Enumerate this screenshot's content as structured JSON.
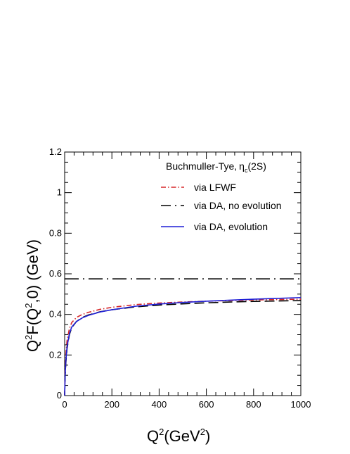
{
  "chart_data": {
    "type": "line",
    "xlabel_base": "Q",
    "xlabel_sup": "2",
    "xlabel_rest": "(GeV",
    "xlabel_sup2": "2",
    "xlabel_end": ")",
    "ylabel_a": "Q",
    "ylabel_sup1": "2",
    "ylabel_b": "F(Q",
    "ylabel_sup2": "2",
    "ylabel_c": ",0) (GeV)",
    "xlim": [
      0,
      1000
    ],
    "ylim": [
      0,
      1.2
    ],
    "x_ticks": [
      "0",
      "200",
      "400",
      "600",
      "800",
      "1000"
    ],
    "y_ticks": [
      "0",
      "0.2",
      "0.4",
      "0.6",
      "0.8",
      "1",
      "1.2"
    ],
    "legend_header_a": "Buchmuller-Tye,",
    "legend_header_eta": "η",
    "legend_header_sub": "c",
    "legend_header_b": "(2S)",
    "grid": false,
    "legend_position": "top-right",
    "series": [
      {
        "name": "via LFWF",
        "color": "#d62728",
        "dash": "dash-dot",
        "x": [
          0,
          2,
          5,
          10,
          20,
          30,
          50,
          75,
          100,
          150,
          200,
          300,
          400,
          500,
          600,
          700,
          800,
          900,
          1000
        ],
        "y": [
          0.0,
          0.12,
          0.2,
          0.27,
          0.33,
          0.36,
          0.385,
          0.4,
          0.41,
          0.425,
          0.435,
          0.448,
          0.456,
          0.461,
          0.465,
          0.468,
          0.471,
          0.473,
          0.475
        ]
      },
      {
        "name": "via DA, no evolution",
        "color": "#000000",
        "dash": "long-dash-dot",
        "x": [
          0,
          1000
        ],
        "y": [
          0.575,
          0.575
        ]
      },
      {
        "name": "via DA, no evolution (curve)",
        "color": "#000000",
        "dash": "long-dash",
        "x": [
          0,
          2,
          5,
          10,
          20,
          30,
          50,
          75,
          100,
          150,
          200,
          300,
          400,
          500,
          600,
          700,
          800,
          900,
          1000
        ],
        "y": [
          0.0,
          0.09,
          0.16,
          0.23,
          0.3,
          0.335,
          0.365,
          0.385,
          0.397,
          0.413,
          0.423,
          0.437,
          0.446,
          0.452,
          0.457,
          0.461,
          0.464,
          0.466,
          0.468
        ]
      },
      {
        "name": "via DA, evolution",
        "color": "#1f1fd6",
        "dash": "solid",
        "x": [
          0,
          2,
          5,
          10,
          20,
          30,
          50,
          75,
          100,
          150,
          200,
          300,
          400,
          500,
          600,
          700,
          800,
          900,
          1000
        ],
        "y": [
          0.0,
          0.1,
          0.17,
          0.24,
          0.305,
          0.338,
          0.365,
          0.383,
          0.395,
          0.412,
          0.423,
          0.44,
          0.451,
          0.459,
          0.465,
          0.47,
          0.475,
          0.479,
          0.483
        ]
      }
    ],
    "legend": [
      {
        "label": "via LFWF",
        "series": 0
      },
      {
        "label": "via DA, no evolution",
        "series": 1
      },
      {
        "label": "via DA, evolution",
        "series": 3
      }
    ]
  }
}
